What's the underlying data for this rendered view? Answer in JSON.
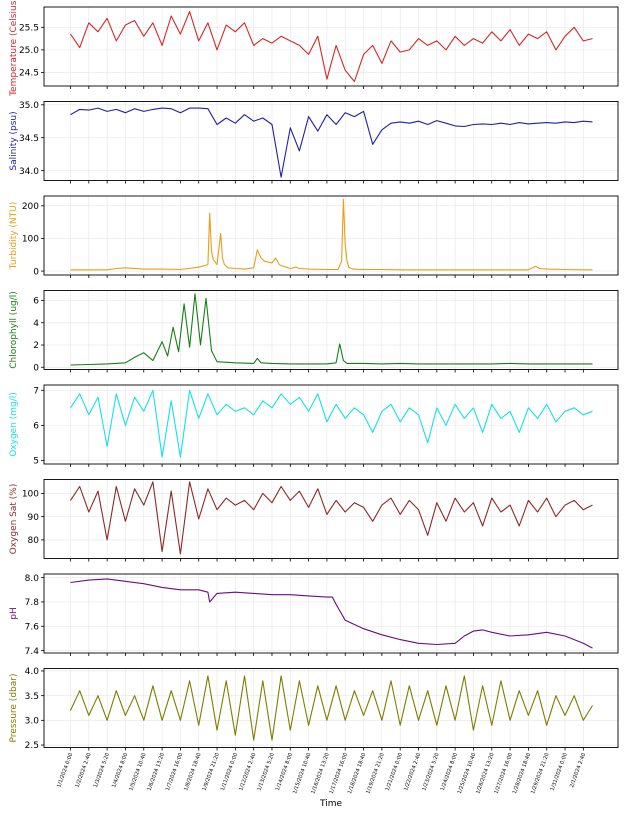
{
  "figure": {
    "xlabel": "Time"
  },
  "x_ticks": [
    "1/1/2024 0:00",
    "1/2/2024 2:40",
    "1/3/2024 5:20",
    "1/4/2024 8:00",
    "1/5/2024 10:40",
    "1/6/2024 13:20",
    "1/7/2024 16:00",
    "1/8/2024 18:40",
    "1/9/2024 21:20",
    "1/11/2024 0:00",
    "1/12/2024 2:40",
    "1/13/2024 5:20",
    "1/14/2024 8:00",
    "1/15/2024 10:40",
    "1/16/2024 13:20",
    "1/17/2024 16:00",
    "1/18/2024 18:40",
    "1/19/2024 21:20",
    "1/21/2024 0:00",
    "1/22/2024 2:40",
    "1/23/2024 5:20",
    "1/24/2024 8:00",
    "1/25/2024 10:40",
    "1/26/2024 13:20",
    "1/27/2024 16:00",
    "1/28/2024 18:40",
    "1/29/2024 21:20",
    "1/31/2024 0:00",
    "2/1/2024 2:40"
  ],
  "chart_data": [
    {
      "type": "line",
      "name": "temperature",
      "ylabel": "Temperature (Celsius)",
      "color": "#d62728",
      "ylim": [
        24.2,
        25.95
      ],
      "yticks": [
        24.5,
        25.0,
        25.5
      ],
      "tick_fmt": 1,
      "x": [
        0,
        0.5,
        1,
        1.5,
        2,
        2.5,
        3,
        3.5,
        4,
        4.5,
        5,
        5.5,
        6,
        6.5,
        7,
        7.5,
        8,
        8.5,
        9,
        9.5,
        10,
        10.5,
        11,
        11.5,
        12,
        12.5,
        13,
        13.5,
        14,
        14.5,
        15,
        15.5,
        16,
        16.5,
        17,
        17.5,
        18,
        18.5,
        19,
        19.5,
        20,
        20.5,
        21,
        21.5,
        22,
        22.5,
        23,
        23.5,
        24,
        24.5,
        25,
        25.5,
        26,
        26.5,
        27,
        27.5,
        28,
        28.5
      ],
      "values": [
        25.35,
        25.05,
        25.6,
        25.4,
        25.7,
        25.2,
        25.55,
        25.65,
        25.3,
        25.6,
        25.1,
        25.75,
        25.35,
        25.85,
        25.2,
        25.6,
        25.0,
        25.55,
        25.4,
        25.6,
        25.1,
        25.25,
        25.15,
        25.3,
        25.2,
        25.1,
        24.9,
        25.3,
        24.35,
        25.1,
        24.55,
        24.3,
        24.9,
        25.1,
        24.7,
        25.2,
        24.95,
        25.0,
        25.25,
        25.1,
        25.2,
        25.0,
        25.3,
        25.1,
        25.25,
        25.15,
        25.4,
        25.2,
        25.45,
        25.1,
        25.35,
        25.25,
        25.4,
        25.0,
        25.3,
        25.5,
        25.2,
        25.25
      ]
    },
    {
      "type": "line",
      "name": "salinity",
      "ylabel": "Salinity (psu)",
      "color": "#1f1fa8",
      "ylim": [
        33.85,
        35.05
      ],
      "yticks": [
        34.0,
        34.5,
        35.0
      ],
      "tick_fmt": 1,
      "x": [
        0,
        0.5,
        1,
        1.5,
        2,
        2.5,
        3,
        3.5,
        4,
        4.5,
        5,
        5.5,
        6,
        6.5,
        7,
        7.5,
        8,
        8.5,
        9,
        9.5,
        10,
        10.5,
        11,
        11.5,
        12,
        12.5,
        13,
        13.5,
        14,
        14.5,
        15,
        15.5,
        16,
        16.5,
        17,
        17.5,
        18,
        18.5,
        19,
        19.5,
        20,
        20.5,
        21,
        21.5,
        22,
        22.5,
        23,
        23.5,
        24,
        24.5,
        25,
        25.5,
        26,
        26.5,
        27,
        27.5,
        28,
        28.5
      ],
      "values": [
        34.85,
        34.93,
        34.92,
        34.95,
        34.9,
        34.93,
        34.88,
        34.94,
        34.9,
        34.93,
        34.95,
        34.94,
        34.88,
        34.95,
        34.95,
        34.94,
        34.7,
        34.8,
        34.72,
        34.85,
        34.75,
        34.8,
        34.7,
        33.9,
        34.65,
        34.3,
        34.82,
        34.6,
        34.85,
        34.7,
        34.88,
        34.82,
        34.9,
        34.4,
        34.62,
        34.72,
        34.74,
        34.72,
        34.75,
        34.7,
        34.76,
        34.72,
        34.68,
        34.67,
        34.7,
        34.71,
        34.7,
        34.72,
        34.7,
        34.73,
        34.71,
        34.72,
        34.73,
        34.72,
        34.74,
        34.73,
        34.75,
        34.74
      ]
    },
    {
      "type": "line",
      "name": "turbidity",
      "ylabel": "Turbidity (NTU)",
      "color": "#e6a017",
      "ylim": [
        -12,
        230
      ],
      "yticks": [
        0,
        100,
        200
      ],
      "tick_fmt": 0,
      "x": [
        0,
        1,
        2,
        2.5,
        3,
        4,
        5,
        6,
        7,
        7.5,
        7.6,
        7.7,
        7.8,
        8,
        8.2,
        8.3,
        8.4,
        8.6,
        9,
        9.5,
        10,
        10.2,
        10.4,
        10.6,
        11,
        11.2,
        11.4,
        11.6,
        12,
        12.3,
        12.5,
        13,
        14,
        14.6,
        14.8,
        14.9,
        15,
        15.1,
        15.2,
        15.4,
        16,
        17,
        18,
        19,
        20,
        21,
        22,
        23,
        24,
        25,
        25.4,
        25.6,
        26,
        27,
        28,
        28.5
      ],
      "values": [
        4,
        4,
        4,
        8,
        10,
        6,
        6,
        5,
        12,
        20,
        178,
        60,
        35,
        20,
        115,
        40,
        20,
        10,
        8,
        6,
        10,
        65,
        40,
        30,
        25,
        40,
        20,
        15,
        8,
        12,
        8,
        6,
        5,
        5,
        30,
        220,
        80,
        30,
        12,
        6,
        5,
        5,
        4,
        4,
        4,
        4,
        4,
        4,
        4,
        4,
        15,
        8,
        6,
        5,
        4,
        4
      ]
    },
    {
      "type": "line",
      "name": "chlorophyll",
      "ylabel": "Chlorophyll (ug/l)",
      "color": "#1a7d1a",
      "ylim": [
        -0.2,
        6.9
      ],
      "yticks": [
        0,
        2,
        4,
        6
      ],
      "tick_fmt": 0,
      "x": [
        0,
        1,
        2,
        3,
        3.5,
        4,
        4.5,
        5,
        5.3,
        5.6,
        5.9,
        6.2,
        6.5,
        6.8,
        7.1,
        7.4,
        7.7,
        8,
        9,
        10,
        10.2,
        10.4,
        11,
        12,
        13,
        14,
        14.5,
        14.7,
        14.9,
        15.1,
        16,
        17,
        18,
        19,
        20,
        21,
        22,
        23,
        24,
        25,
        26,
        27,
        28,
        28.5
      ],
      "values": [
        0.2,
        0.25,
        0.3,
        0.4,
        0.9,
        1.3,
        0.6,
        2.3,
        1.0,
        3.6,
        1.4,
        5.7,
        1.8,
        6.6,
        2.0,
        6.2,
        1.5,
        0.5,
        0.4,
        0.35,
        0.8,
        0.4,
        0.35,
        0.3,
        0.3,
        0.3,
        0.4,
        2.1,
        0.6,
        0.35,
        0.35,
        0.3,
        0.35,
        0.3,
        0.3,
        0.3,
        0.3,
        0.3,
        0.35,
        0.3,
        0.3,
        0.3,
        0.3,
        0.3
      ]
    },
    {
      "type": "line",
      "name": "oxygen",
      "ylabel": "Oxygen (mg/l)",
      "color": "#17e0e6",
      "ylim": [
        4.9,
        7.15
      ],
      "yticks": [
        5,
        6,
        7
      ],
      "tick_fmt": 0,
      "x": [
        0,
        0.5,
        1,
        1.5,
        2,
        2.5,
        3,
        3.5,
        4,
        4.5,
        5,
        5.5,
        6,
        6.5,
        7,
        7.5,
        8,
        8.5,
        9,
        9.5,
        10,
        10.5,
        11,
        11.5,
        12,
        12.5,
        13,
        13.5,
        14,
        14.5,
        15,
        15.5,
        16,
        16.5,
        17,
        17.5,
        18,
        18.5,
        19,
        19.5,
        20,
        20.5,
        21,
        21.5,
        22,
        22.5,
        23,
        23.5,
        24,
        24.5,
        25,
        25.5,
        26,
        26.5,
        27,
        27.5,
        28,
        28.5
      ],
      "values": [
        6.5,
        6.9,
        6.3,
        6.8,
        5.4,
        6.9,
        6.0,
        6.8,
        6.4,
        7.0,
        5.1,
        6.7,
        5.1,
        7.0,
        6.2,
        6.9,
        6.3,
        6.6,
        6.4,
        6.5,
        6.3,
        6.7,
        6.5,
        6.9,
        6.6,
        6.8,
        6.4,
        6.9,
        6.1,
        6.6,
        6.2,
        6.5,
        6.3,
        5.8,
        6.4,
        6.6,
        6.1,
        6.5,
        6.3,
        5.5,
        6.5,
        6.0,
        6.6,
        6.2,
        6.5,
        5.8,
        6.6,
        6.2,
        6.4,
        5.8,
        6.5,
        6.2,
        6.6,
        6.1,
        6.4,
        6.5,
        6.3,
        6.4
      ]
    },
    {
      "type": "line",
      "name": "oxygen_sat",
      "ylabel": "Oxygen Sat (%)",
      "color": "#8b2a2a",
      "ylim": [
        72,
        106
      ],
      "yticks": [
        80,
        90,
        100
      ],
      "tick_fmt": 0,
      "x": [
        0,
        0.5,
        1,
        1.5,
        2,
        2.5,
        3,
        3.5,
        4,
        4.5,
        5,
        5.5,
        6,
        6.5,
        7,
        7.5,
        8,
        8.5,
        9,
        9.5,
        10,
        10.5,
        11,
        11.5,
        12,
        12.5,
        13,
        13.5,
        14,
        14.5,
        15,
        15.5,
        16,
        16.5,
        17,
        17.5,
        18,
        18.5,
        19,
        19.5,
        20,
        20.5,
        21,
        21.5,
        22,
        22.5,
        23,
        23.5,
        24,
        24.5,
        25,
        25.5,
        26,
        26.5,
        27,
        27.5,
        28,
        28.5
      ],
      "values": [
        97,
        103,
        92,
        101,
        80,
        103,
        88,
        102,
        95,
        105,
        75,
        101,
        74,
        105,
        89,
        102,
        93,
        98,
        95,
        97,
        93,
        100,
        96,
        103,
        97,
        101,
        94,
        102,
        91,
        97,
        92,
        96,
        94,
        88,
        95,
        98,
        91,
        97,
        93,
        82,
        96,
        88,
        98,
        92,
        96,
        86,
        98,
        92,
        95,
        86,
        97,
        92,
        98,
        90,
        95,
        97,
        93,
        95
      ]
    },
    {
      "type": "line",
      "name": "ph",
      "ylabel": "pH",
      "color": "#6a0d7d",
      "ylim": [
        7.38,
        8.03
      ],
      "yticks": [
        7.4,
        7.6,
        7.8,
        8.0
      ],
      "tick_fmt": 1,
      "x": [
        0,
        1,
        2,
        3,
        4,
        5,
        6,
        7,
        7.5,
        7.6,
        8,
        9,
        10,
        11,
        12,
        13,
        14,
        14.3,
        14.5,
        15,
        16,
        17,
        18,
        19,
        20,
        21,
        21.5,
        22,
        22.5,
        23,
        24,
        25,
        26,
        27,
        28,
        28.5
      ],
      "values": [
        7.96,
        7.98,
        7.99,
        7.97,
        7.95,
        7.92,
        7.9,
        7.9,
        7.88,
        7.8,
        7.87,
        7.88,
        7.87,
        7.86,
        7.86,
        7.85,
        7.84,
        7.84,
        7.78,
        7.65,
        7.58,
        7.53,
        7.49,
        7.46,
        7.45,
        7.46,
        7.52,
        7.56,
        7.57,
        7.55,
        7.52,
        7.53,
        7.55,
        7.52,
        7.46,
        7.42
      ]
    },
    {
      "type": "line",
      "name": "pressure",
      "ylabel": "Pressure (dbar)",
      "color": "#7d7d00",
      "ylim": [
        2.45,
        4.05
      ],
      "yticks": [
        2.5,
        3.0,
        3.5,
        4.0
      ],
      "tick_fmt": 1,
      "x": [
        0,
        0.5,
        1,
        1.5,
        2,
        2.5,
        3,
        3.5,
        4,
        4.5,
        5,
        5.5,
        6,
        6.5,
        7,
        7.5,
        8,
        8.5,
        9,
        9.5,
        10,
        10.5,
        11,
        11.5,
        12,
        12.5,
        13,
        13.5,
        14,
        14.5,
        15,
        15.5,
        16,
        16.5,
        17,
        17.5,
        18,
        18.5,
        19,
        19.5,
        20,
        20.5,
        21,
        21.5,
        22,
        22.5,
        23,
        23.5,
        24,
        24.5,
        25,
        25.5,
        26,
        26.5,
        27,
        27.5,
        28,
        28.5
      ],
      "values": [
        3.2,
        3.6,
        3.1,
        3.5,
        3.0,
        3.6,
        3.1,
        3.5,
        3.0,
        3.7,
        3.0,
        3.6,
        3.0,
        3.8,
        2.9,
        3.9,
        2.8,
        3.8,
        2.7,
        3.9,
        2.6,
        3.8,
        2.6,
        3.9,
        2.8,
        3.8,
        2.9,
        3.7,
        3.0,
        3.7,
        3.0,
        3.6,
        3.1,
        3.6,
        3.0,
        3.8,
        2.9,
        3.7,
        3.0,
        3.6,
        2.9,
        3.7,
        3.0,
        3.9,
        2.8,
        3.7,
        2.9,
        3.8,
        3.0,
        3.6,
        3.1,
        3.6,
        2.9,
        3.5,
        3.1,
        3.5,
        3.0,
        3.3
      ]
    }
  ]
}
